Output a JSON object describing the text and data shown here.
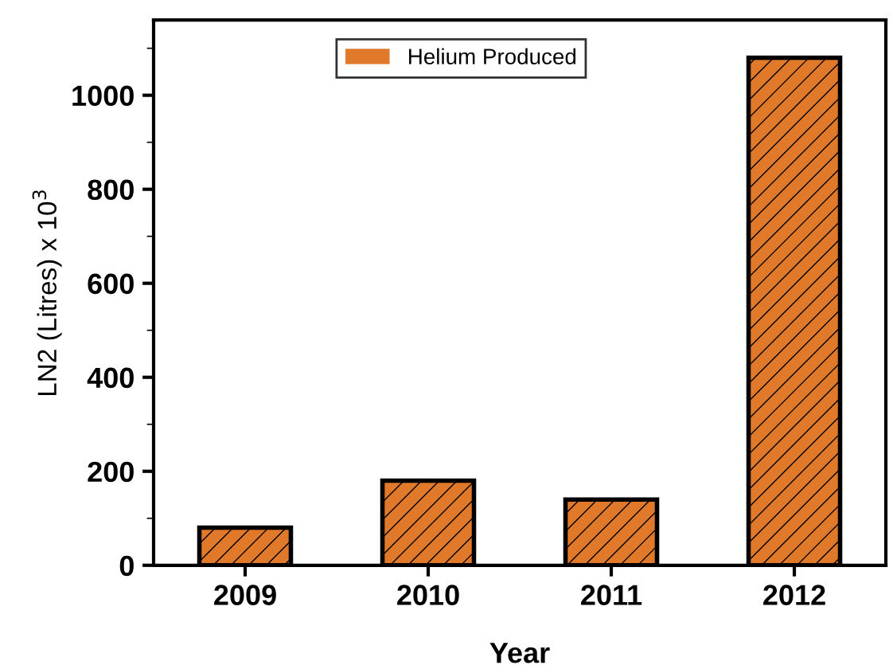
{
  "chart_data": {
    "type": "bar",
    "xlabel": "Year",
    "ylabel": "LN2 (Litres) x 10$^{3}$",
    "categories": [
      "2009",
      "2010",
      "2011",
      "2012"
    ],
    "series": [
      {
        "name": "Helium Produced",
        "color": "#e07a2a",
        "values": [
          80,
          180,
          140,
          1080
        ]
      }
    ],
    "ylim": [
      0,
      1160
    ],
    "yticks": [
      0,
      200,
      400,
      600,
      800,
      1000
    ],
    "legend": "top",
    "grid": false
  }
}
